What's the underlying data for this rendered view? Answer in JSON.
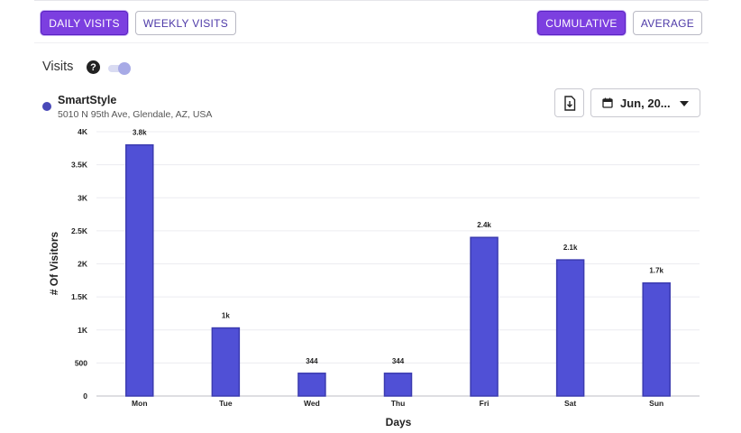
{
  "tabs": {
    "daily_label": "DAILY VISITS",
    "weekly_label": "WEEKLY VISITS",
    "cumulative_label": "CUMULATIVE",
    "average_label": "AVERAGE"
  },
  "visits_toggle": {
    "label": "Visits",
    "help_glyph": "?"
  },
  "store": {
    "name": "SmartStyle",
    "address": "5010 N 95th Ave, Glendale, AZ, USA"
  },
  "date_picker": {
    "label": "Jun, 20..."
  },
  "colors": {
    "accent": "#7c3fe0",
    "bar": "#5050d6",
    "bar_border": "#3b3bb0",
    "legend": "#4949b8"
  },
  "chart_data": {
    "type": "bar",
    "categories": [
      "Mon",
      "Tue",
      "Wed",
      "Thu",
      "Fri",
      "Sat",
      "Sun"
    ],
    "values": [
      3800,
      1030,
      344,
      344,
      2400,
      2060,
      1710
    ],
    "data_labels": [
      "3.8k",
      "1k",
      "344",
      "344",
      "2.4k",
      "2.1k",
      "1.7k"
    ],
    "xlabel": "Days",
    "ylabel": "# Of Visitors",
    "ylim": [
      0,
      4000
    ],
    "yticks": [
      0,
      500,
      1000,
      1500,
      2000,
      2500,
      3000,
      3500,
      4000
    ],
    "ytick_labels": [
      "0",
      "500",
      "1K",
      "1.5K",
      "2K",
      "2.5K",
      "3K",
      "3.5K",
      "4K"
    ],
    "grid": true
  }
}
